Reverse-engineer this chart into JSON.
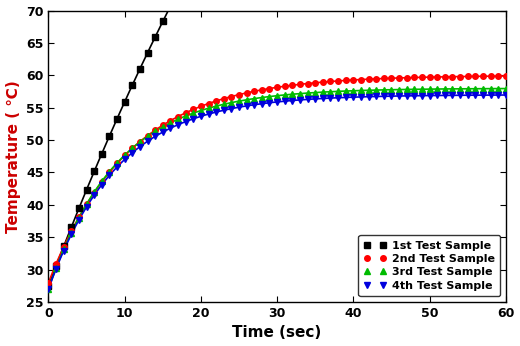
{
  "title": "",
  "xlabel": "Time (sec)",
  "ylabel": "Temperature (°C)",
  "xlim": [
    0,
    60
  ],
  "ylim": [
    25,
    70
  ],
  "xticks": [
    0,
    10,
    20,
    30,
    40,
    50,
    60
  ],
  "yticks": [
    25,
    30,
    35,
    40,
    45,
    50,
    55,
    60,
    65,
    70
  ],
  "series": [
    {
      "label": "1st Test Sample",
      "color": "#000000",
      "marker": "s",
      "T0": 27.5,
      "Tmax": 200,
      "k": 0.018
    },
    {
      "label": "2nd Test Sample",
      "color": "#ff0000",
      "marker": "o",
      "T0": 28.0,
      "Tmax": 60,
      "k": 0.095
    },
    {
      "label": "3rd Test Sample",
      "color": "#00bb00",
      "marker": "^",
      "T0": 27.0,
      "Tmax": 58,
      "k": 0.11
    },
    {
      "label": "4th Test Sample",
      "color": "#0000dd",
      "marker": "v",
      "T0": 27.0,
      "Tmax": 57,
      "k": 0.11
    }
  ],
  "legend_loc": "lower right",
  "marker_every": 1,
  "linewidth": 1.2,
  "markersize": 4,
  "background_color": "#ffffff",
  "axis_color": "#000000",
  "font_color": "#000000",
  "ylabel_color": "#cc0000"
}
